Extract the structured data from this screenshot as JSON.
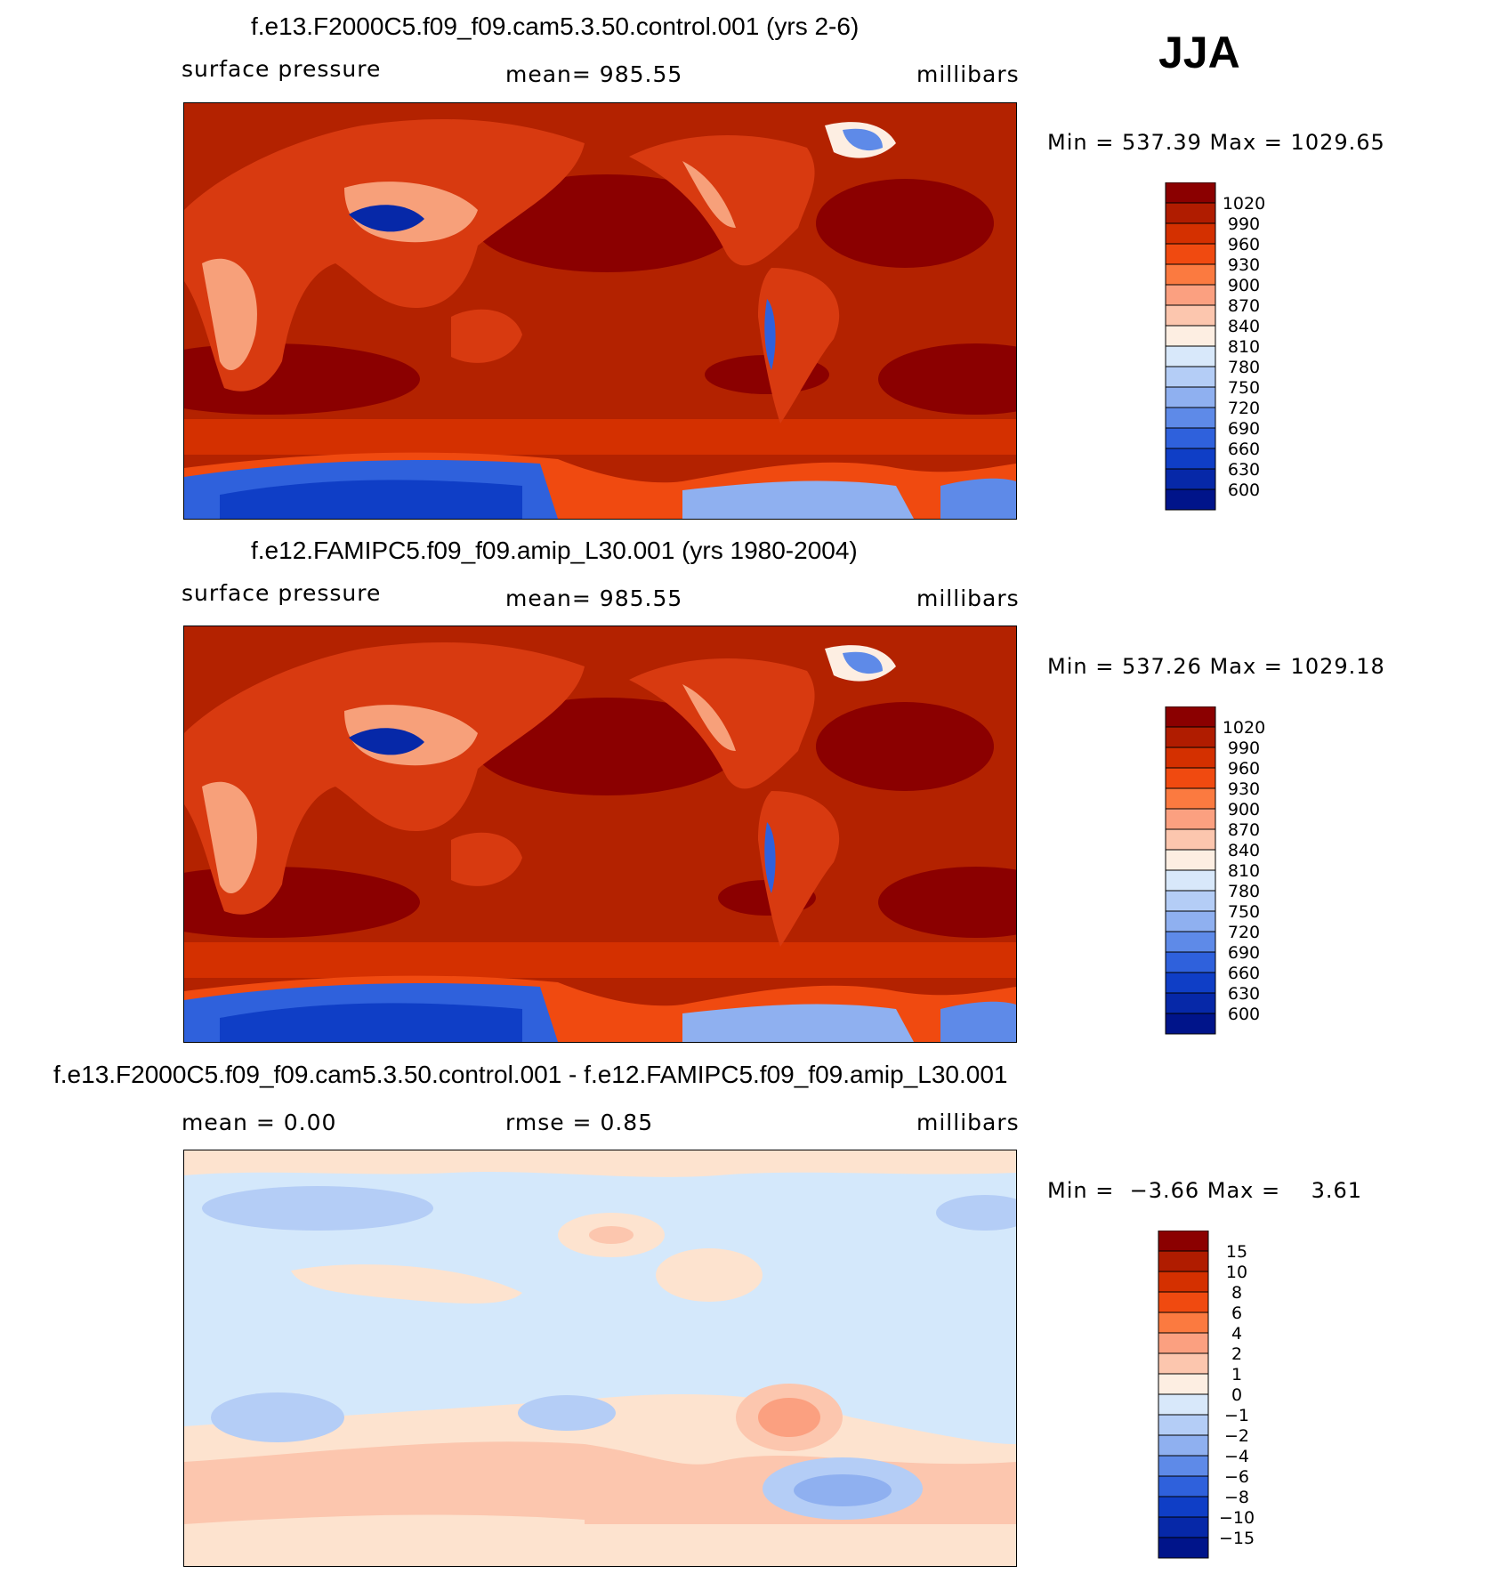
{
  "season": "JJA",
  "colors": {
    "ocean_dark": "#8b0000",
    "ocean_main": "#b32200",
    "land_mid": "#d83a10",
    "land_light": "#f7a07a",
    "low_blue": "#1040c8",
    "diff_bg": "#d4e8fb",
    "diff_pos": "#fde3cf"
  },
  "chart_data": [
    {
      "type": "heatmap",
      "title": "f.e13.F2000C5.f09_f09.cam5.3.50.control.001 (yrs 2-6)",
      "variable": "surface pressure",
      "stat_text": "mean= 985.55",
      "mean": 985.55,
      "units": "millibars",
      "minmax_text": "Min = 537.39 Max = 1029.65",
      "min": 537.39,
      "max": 1029.65,
      "levels": [
        1020,
        990,
        960,
        930,
        900,
        870,
        840,
        810,
        780,
        750,
        720,
        690,
        660,
        630,
        600
      ],
      "colorbar": [
        "#8b0000",
        "#b01c00",
        "#d43000",
        "#f04a10",
        "#fb7a40",
        "#fba080",
        "#fcc6ae",
        "#fdeee2",
        "#d8e8fa",
        "#b4cdf6",
        "#8fb0f0",
        "#5e8ae8",
        "#2f61dc",
        "#0f3ec6",
        "#0628a8",
        "#00148a"
      ]
    },
    {
      "type": "heatmap",
      "title": "f.e12.FAMIPC5.f09_f09.amip_L30.001 (yrs 1980-2004)",
      "variable": "surface pressure",
      "stat_text": "mean= 985.55",
      "mean": 985.55,
      "units": "millibars",
      "minmax_text": "Min = 537.26 Max = 1029.18",
      "min": 537.26,
      "max": 1029.18,
      "levels": [
        1020,
        990,
        960,
        930,
        900,
        870,
        840,
        810,
        780,
        750,
        720,
        690,
        660,
        630,
        600
      ],
      "colorbar": [
        "#8b0000",
        "#b01c00",
        "#d43000",
        "#f04a10",
        "#fb7a40",
        "#fba080",
        "#fcc6ae",
        "#fdeee2",
        "#d8e8fa",
        "#b4cdf6",
        "#8fb0f0",
        "#5e8ae8",
        "#2f61dc",
        "#0f3ec6",
        "#0628a8",
        "#00148a"
      ]
    },
    {
      "type": "heatmap",
      "title": "f.e13.F2000C5.f09_f09.cam5.3.50.control.001 - f.e12.FAMIPC5.f09_f09.amip_L30.001",
      "stat_left": "mean =    0.00",
      "stat_mid": "rmse =    0.85",
      "mean": 0.0,
      "rmse": 0.85,
      "units": "millibars",
      "minmax_text": "Min =  −3.66 Max =    3.61",
      "min": -3.66,
      "max": 3.61,
      "levels": [
        "15",
        "10",
        "8",
        "6",
        "4",
        "2",
        "1",
        "0",
        "−1",
        "−2",
        "−4",
        "−6",
        "−8",
        "−10",
        "−15"
      ],
      "colorbar": [
        "#8b0000",
        "#b01c00",
        "#d43000",
        "#f04a10",
        "#fb7a40",
        "#fba080",
        "#fcc6ae",
        "#fdeee2",
        "#d8e8fa",
        "#b4cdf6",
        "#8fb0f0",
        "#5e8ae8",
        "#2f61dc",
        "#0f3ec6",
        "#0628a8",
        "#00148a"
      ]
    }
  ]
}
